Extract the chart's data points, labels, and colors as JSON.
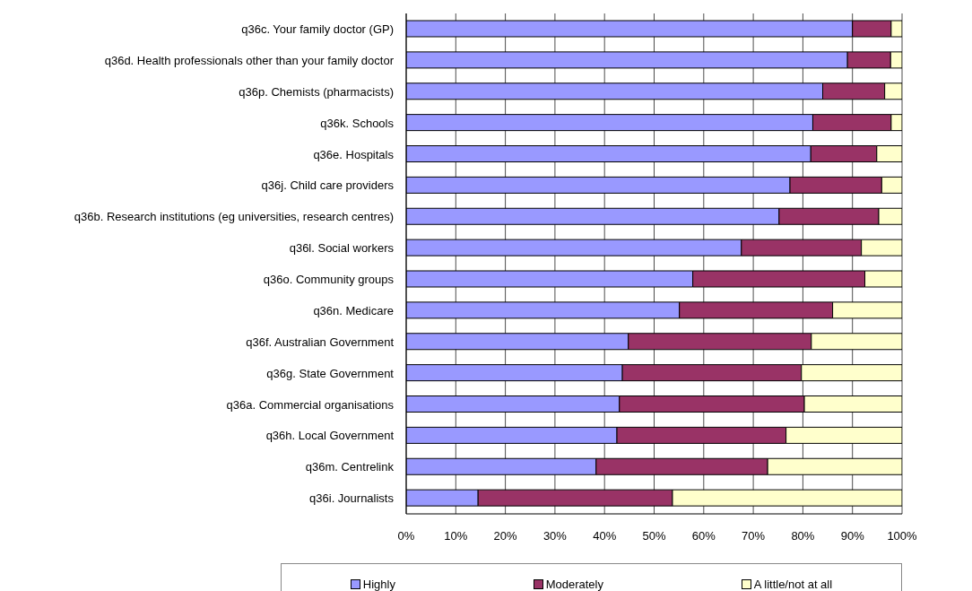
{
  "chart_data": {
    "type": "bar",
    "orientation": "horizontal",
    "stacked": true,
    "categories": [
      "q36c. Your family doctor (GP)",
      "q36d. Health professionals other than your family doctor",
      "q36p. Chemists (pharmacists)",
      "q36k. Schools",
      "q36e. Hospitals",
      "q36j. Child care providers",
      "q36b. Research institutions (eg universities, research centres)",
      "q36l. Social workers",
      "q36o. Community groups",
      "q36n. Medicare",
      "q36f. Australian Government",
      "q36g. State Government",
      "q36a. Commercial organisations",
      "q36h. Local Government",
      "q36m. Centrelink",
      "q36i. Journalists"
    ],
    "series": [
      {
        "name": "Highly",
        "color": "#9999ff",
        "values": [
          90,
          89,
          84,
          82,
          81.6,
          77.4,
          75.2,
          67.6,
          57.8,
          55.1,
          44.8,
          43.6,
          43,
          42.5,
          38.3,
          14.5
        ]
      },
      {
        "name": "Moderately",
        "color": "#993366",
        "values": [
          7.8,
          8.7,
          12.5,
          15.8,
          13.3,
          18.5,
          20.1,
          24.2,
          34.7,
          30.9,
          36.9,
          36.1,
          37.3,
          34.1,
          34.6,
          39.2
        ]
      },
      {
        "name": "A little/not at all",
        "color": "#ffffcc",
        "values": [
          2.2,
          2.3,
          3.5,
          2.2,
          5.1,
          4.1,
          4.7,
          8.2,
          7.5,
          14,
          18.3,
          20.3,
          19.7,
          23.4,
          27.1,
          46.3
        ]
      }
    ],
    "xlim": [
      0,
      100
    ],
    "xticks": [
      {
        "value": 0,
        "label": "0%"
      },
      {
        "value": 10,
        "label": "10%"
      },
      {
        "value": 20,
        "label": "20%"
      },
      {
        "value": 30,
        "label": "30%"
      },
      {
        "value": 40,
        "label": "40%"
      },
      {
        "value": 50,
        "label": "50%"
      },
      {
        "value": 60,
        "label": "60%"
      },
      {
        "value": 70,
        "label": "70%"
      },
      {
        "value": 80,
        "label": "80%"
      },
      {
        "value": 90,
        "label": "90%"
      },
      {
        "value": 100,
        "label": "100%"
      }
    ],
    "grid": "x",
    "legend": "bottom"
  }
}
